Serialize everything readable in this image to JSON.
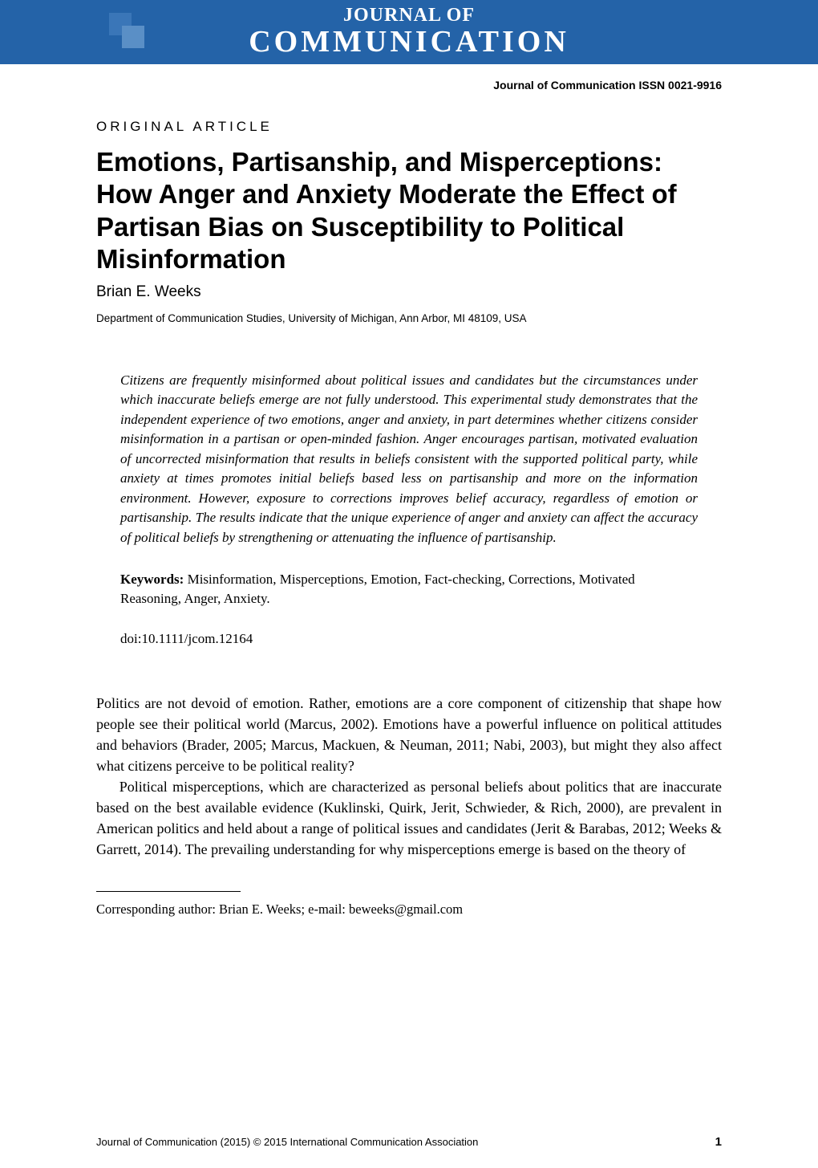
{
  "banner": {
    "line1": "JOURNAL OF",
    "line2": "COMMUNICATION",
    "bg_color": "#2463a8",
    "text_color": "#ffffff"
  },
  "header": {
    "issn_line": "Journal of Communication ISSN 0021-9916",
    "article_type": "ORIGINAL ARTICLE",
    "title": "Emotions, Partisanship, and Misperceptions: How Anger and Anxiety Moderate the Effect of Partisan Bias on Susceptibility to Political Misinformation",
    "author": "Brian E. Weeks",
    "affiliation": "Department of Communication Studies, University of Michigan, Ann Arbor, MI 48109, USA"
  },
  "abstract": "Citizens are frequently misinformed about political issues and candidates but the circumstances under which inaccurate beliefs emerge are not fully understood. This experimental study demonstrates that the independent experience of two emotions, anger and anxiety, in part determines whether citizens consider misinformation in a partisan or open-minded fashion. Anger encourages partisan, motivated evaluation of uncorrected misinformation that results in beliefs consistent with the supported political party, while anxiety at times promotes initial beliefs based less on partisanship and more on the information environment. However, exposure to corrections improves belief accuracy, regardless of emotion or partisanship. The results indicate that the unique experience of anger and anxiety can affect the accuracy of political beliefs by strengthening or attenuating the influence of partisanship.",
  "keywords": {
    "label": "Keywords:",
    "text": " Misinformation, Misperceptions, Emotion, Fact-checking, Corrections, Motivated Reasoning, Anger, Anxiety."
  },
  "doi": "doi:10.1111/jcom.12164",
  "body": {
    "p1": "Politics are not devoid of emotion. Rather, emotions are a core component of citizenship that shape how people see their political world (Marcus, 2002). Emotions have a powerful influence on political attitudes and behaviors (Brader, 2005; Marcus, Mackuen, & Neuman, 2011; Nabi, 2003), but might they also affect what citizens perceive to be political reality?",
    "p2": "Political misperceptions, which are characterized as personal beliefs about politics that are inaccurate based on the best available evidence (Kuklinski, Quirk, Jerit, Schwieder, & Rich, 2000), are prevalent in American politics and held about a range of political issues and candidates (Jerit & Barabas, 2012; Weeks & Garrett, 2014). The prevailing understanding for why misperceptions emerge is based on the theory of"
  },
  "footnote": "Corresponding author: Brian E. Weeks; e-mail: beweeks@gmail.com",
  "footer": {
    "copyright": "Journal of Communication (2015) © 2015 International Communication Association",
    "page": "1"
  },
  "typography": {
    "title_fontsize": 33,
    "body_fontsize": 18,
    "abstract_fontsize": 17,
    "footnote_fontsize": 16.5,
    "footer_fontsize": 13
  }
}
